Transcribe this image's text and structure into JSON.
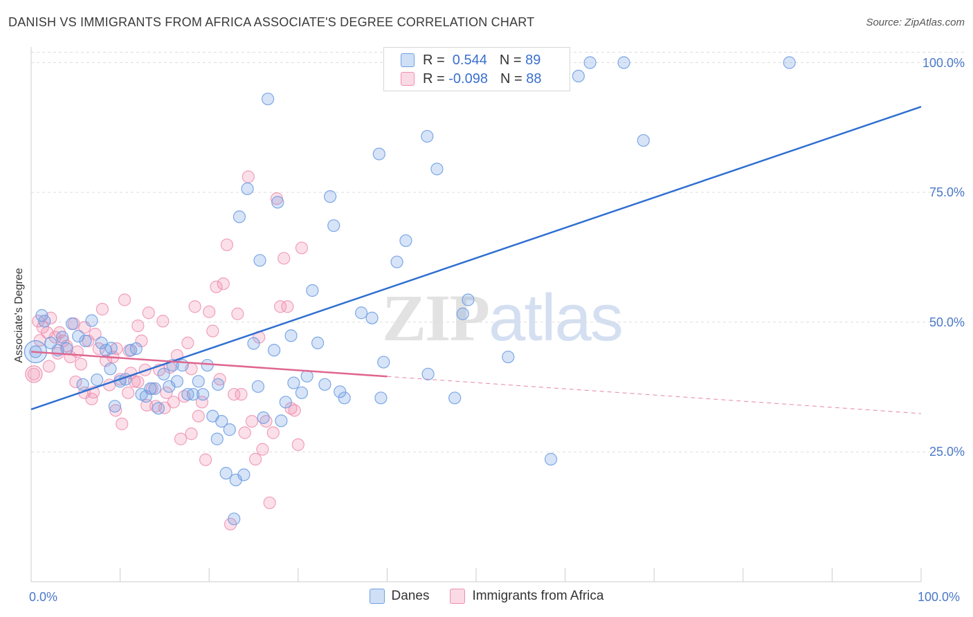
{
  "title": "DANISH VS IMMIGRANTS FROM AFRICA ASSOCIATE'S DEGREE CORRELATION CHART",
  "source": "Source: ZipAtlas.com",
  "watermark": {
    "zip": "ZIP",
    "atlas": "atlas"
  },
  "colors": {
    "danes": "#6f9fe3",
    "danes_line": "#2f6fd0",
    "africa": "#ef8fb0",
    "africa_line": "#e0668f",
    "grid": "#dddddd",
    "axis_text": "#4a78c8"
  },
  "legend": {
    "rows": [
      {
        "r_label": "R = ",
        "r_value": " 0.544",
        "n_label": "N = ",
        "n_value": "89"
      },
      {
        "r_label": "R = ",
        "r_value": "-0.098",
        "n_label": "N = ",
        "n_value": "88"
      }
    ]
  },
  "bottom_legend": [
    "Danes",
    "Immigrants from Africa"
  ],
  "chart_data": {
    "type": "scatter",
    "title": "DANISH VS IMMIGRANTS FROM AFRICA ASSOCIATE'S DEGREE CORRELATION CHART",
    "xlabel": "",
    "ylabel": "Associate's Degree",
    "xlim": [
      0,
      100
    ],
    "ylim": [
      0,
      103
    ],
    "x_tick_labels": [
      "0.0%",
      "100.0%"
    ],
    "y_ticks": [
      25,
      50,
      75,
      100
    ],
    "y_tick_labels": [
      "25.0%",
      "50.0%",
      "75.0%",
      "100.0%"
    ],
    "grid": "horizontal dashed",
    "legend_position": "top-center",
    "series": [
      {
        "name": "Danes",
        "R": 0.544,
        "N": 89,
        "trend": {
          "x": [
            0,
            100
          ],
          "y": [
            33.2,
            91.5
          ],
          "dashed_from": null
        },
        "points": [
          [
            0.5,
            44.3
          ],
          [
            1.2,
            51.3
          ],
          [
            1.5,
            50.2
          ],
          [
            2.2,
            46.0
          ],
          [
            3.0,
            44.6
          ],
          [
            3.5,
            47.1
          ],
          [
            4.0,
            44.9
          ],
          [
            4.6,
            49.7
          ],
          [
            5.3,
            47.3
          ],
          [
            6.1,
            46.4
          ],
          [
            6.8,
            50.3
          ],
          [
            7.4,
            38.9
          ],
          [
            7.9,
            46.0
          ],
          [
            8.4,
            44.6
          ],
          [
            8.9,
            41.0
          ],
          [
            9.4,
            33.8
          ],
          [
            10.0,
            38.6
          ],
          [
            10.6,
            39.0
          ],
          [
            11.2,
            44.6
          ],
          [
            11.8,
            44.9
          ],
          [
            12.4,
            36.1
          ],
          [
            12.9,
            35.7
          ],
          [
            13.4,
            37.2
          ],
          [
            13.9,
            37.2
          ],
          [
            14.3,
            33.4
          ],
          [
            14.9,
            40.0
          ],
          [
            15.5,
            37.6
          ],
          [
            15.9,
            41.7
          ],
          [
            16.4,
            38.6
          ],
          [
            17.0,
            41.7
          ],
          [
            17.6,
            36.1
          ],
          [
            18.2,
            36.1
          ],
          [
            18.8,
            38.6
          ],
          [
            19.3,
            36.1
          ],
          [
            19.8,
            41.7
          ],
          [
            20.4,
            31.9
          ],
          [
            20.9,
            27.5
          ],
          [
            21.4,
            30.9
          ],
          [
            21.9,
            20.9
          ],
          [
            22.3,
            29.3
          ],
          [
            22.8,
            12.1
          ],
          [
            23.0,
            19.6
          ],
          [
            23.4,
            70.3
          ],
          [
            23.9,
            20.6
          ],
          [
            24.3,
            75.7
          ],
          [
            25.0,
            45.9
          ],
          [
            25.5,
            37.6
          ],
          [
            25.7,
            61.9
          ],
          [
            26.1,
            31.6
          ],
          [
            26.6,
            93.0
          ],
          [
            27.3,
            44.6
          ],
          [
            27.7,
            73.1
          ],
          [
            28.1,
            31.0
          ],
          [
            28.6,
            34.6
          ],
          [
            29.5,
            38.3
          ],
          [
            29.2,
            47.4
          ],
          [
            30.4,
            36.4
          ],
          [
            31.0,
            39.6
          ],
          [
            31.6,
            56.1
          ],
          [
            32.2,
            46.0
          ],
          [
            33.6,
            74.2
          ],
          [
            34.0,
            68.6
          ],
          [
            34.7,
            36.6
          ],
          [
            35.2,
            35.4
          ],
          [
            37.1,
            51.8
          ],
          [
            38.3,
            50.8
          ],
          [
            39.3,
            35.4
          ],
          [
            39.1,
            82.4
          ],
          [
            39.6,
            42.3
          ],
          [
            41.1,
            61.6
          ],
          [
            42.1,
            65.7
          ],
          [
            44.5,
            85.8
          ],
          [
            44.6,
            40.0
          ],
          [
            45.6,
            79.5
          ],
          [
            47.6,
            35.4
          ],
          [
            48.5,
            51.6
          ],
          [
            49.1,
            54.3
          ],
          [
            50.4,
            100.0
          ],
          [
            53.6,
            43.3
          ],
          [
            58.4,
            23.6
          ],
          [
            61.5,
            97.4
          ],
          [
            62.8,
            100.0
          ],
          [
            66.6,
            100.0
          ],
          [
            68.8,
            85.0
          ],
          [
            85.2,
            100.0
          ],
          [
            5.8,
            38.0
          ],
          [
            9.0,
            45.0
          ],
          [
            21.0,
            38.0
          ],
          [
            33.0,
            38.0
          ]
        ]
      },
      {
        "name": "Immigrants from Africa",
        "R": -0.098,
        "N": 88,
        "trend": {
          "x": [
            0,
            100
          ],
          "y": [
            44.3,
            32.4
          ],
          "dashed_from": 40
        },
        "points": [
          [
            0.3,
            40.0
          ],
          [
            0.8,
            50.2
          ],
          [
            1.3,
            49.0
          ],
          [
            1.8,
            48.0
          ],
          [
            2.2,
            50.8
          ],
          [
            2.7,
            47.1
          ],
          [
            3.2,
            48.0
          ],
          [
            3.6,
            46.4
          ],
          [
            4.0,
            45.4
          ],
          [
            4.4,
            43.3
          ],
          [
            4.8,
            49.7
          ],
          [
            5.2,
            44.3
          ],
          [
            5.6,
            41.9
          ],
          [
            6.0,
            36.4
          ],
          [
            6.4,
            46.4
          ],
          [
            6.8,
            35.2
          ],
          [
            7.2,
            47.7
          ],
          [
            7.6,
            44.9
          ],
          [
            8.0,
            52.5
          ],
          [
            8.4,
            42.6
          ],
          [
            8.8,
            37.9
          ],
          [
            9.2,
            43.3
          ],
          [
            9.6,
            44.9
          ],
          [
            10.0,
            39.0
          ],
          [
            10.2,
            30.4
          ],
          [
            10.5,
            54.3
          ],
          [
            10.9,
            36.4
          ],
          [
            11.2,
            40.2
          ],
          [
            11.6,
            38.6
          ],
          [
            12.0,
            49.3
          ],
          [
            12.4,
            46.4
          ],
          [
            12.8,
            40.8
          ],
          [
            13.2,
            51.8
          ],
          [
            13.6,
            37.2
          ],
          [
            14.0,
            33.8
          ],
          [
            14.4,
            40.8
          ],
          [
            14.8,
            50.2
          ],
          [
            15.2,
            36.4
          ],
          [
            15.6,
            41.3
          ],
          [
            16.0,
            34.6
          ],
          [
            16.4,
            43.6
          ],
          [
            16.8,
            27.5
          ],
          [
            17.2,
            35.7
          ],
          [
            17.6,
            46.0
          ],
          [
            18.0,
            41.0
          ],
          [
            18.4,
            53.0
          ],
          [
            18.8,
            31.9
          ],
          [
            19.2,
            34.6
          ],
          [
            19.6,
            23.5
          ],
          [
            20.0,
            52.0
          ],
          [
            20.4,
            48.3
          ],
          [
            20.8,
            56.8
          ],
          [
            21.2,
            39.0
          ],
          [
            21.6,
            57.4
          ],
          [
            22.0,
            64.9
          ],
          [
            22.4,
            11.1
          ],
          [
            22.8,
            36.1
          ],
          [
            23.2,
            51.6
          ],
          [
            23.6,
            36.1
          ],
          [
            24.0,
            28.7
          ],
          [
            24.4,
            78.0
          ],
          [
            24.8,
            30.9
          ],
          [
            25.2,
            23.6
          ],
          [
            25.6,
            47.1
          ],
          [
            26.0,
            25.5
          ],
          [
            26.4,
            30.9
          ],
          [
            26.8,
            15.2
          ],
          [
            27.2,
            28.7
          ],
          [
            27.6,
            73.8
          ],
          [
            28.0,
            53.0
          ],
          [
            28.4,
            62.3
          ],
          [
            28.8,
            53.0
          ],
          [
            29.2,
            33.4
          ],
          [
            29.6,
            33.0
          ],
          [
            30.0,
            26.4
          ],
          [
            30.4,
            64.3
          ],
          [
            18.0,
            28.5
          ],
          [
            15.0,
            33.5
          ],
          [
            13.0,
            34.0
          ],
          [
            12.0,
            38.5
          ],
          [
            11.0,
            44.5
          ],
          [
            9.5,
            33.0
          ],
          [
            7.0,
            36.5
          ],
          [
            5.0,
            38.5
          ],
          [
            3.0,
            44.0
          ],
          [
            2.0,
            41.5
          ],
          [
            1.0,
            46.5
          ],
          [
            6.0,
            49.0
          ]
        ]
      }
    ]
  }
}
